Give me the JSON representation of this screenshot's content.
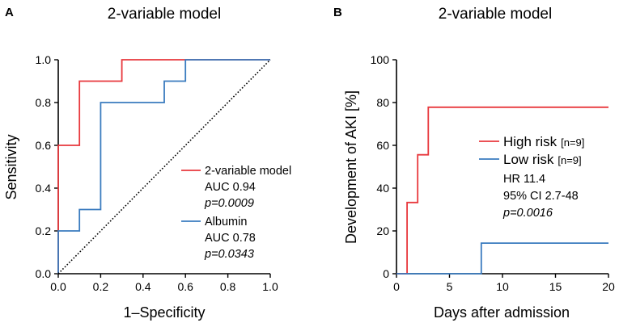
{
  "chart_data": [
    {
      "panel": "A",
      "type": "line",
      "title": "2-variable model",
      "xlabel": "1–Specificity",
      "ylabel": "Sensitivity",
      "xlim": [
        0,
        1
      ],
      "ylim": [
        0,
        1
      ],
      "xticks": [
        "0.0",
        "0.2",
        "0.4",
        "0.6",
        "0.8",
        "1.0"
      ],
      "yticks": [
        "0.0",
        "0.2",
        "0.4",
        "0.6",
        "0.8",
        "1.0"
      ],
      "series": [
        {
          "name": "2-variable model",
          "color": "#e8383d",
          "x": [
            0,
            0,
            0,
            0.1,
            0.1,
            0.2,
            0.3,
            0.3,
            1.0
          ],
          "y": [
            0,
            0.2,
            0.6,
            0.6,
            0.9,
            0.9,
            0.9,
            1.0,
            1.0
          ],
          "auc": "AUC 0.94",
          "p": "p=0.0009"
        },
        {
          "name": "Albumin",
          "color": "#3a7bbf",
          "x": [
            0,
            0,
            0.1,
            0.1,
            0.2,
            0.2,
            0.5,
            0.5,
            0.6,
            0.6,
            1.0
          ],
          "y": [
            0,
            0.2,
            0.2,
            0.3,
            0.3,
            0.8,
            0.8,
            0.9,
            0.9,
            1.0,
            1.0
          ],
          "auc": "AUC 0.78",
          "p": "p=0.0343"
        },
        {
          "name": "reference",
          "color": "#000000",
          "x": [
            0,
            1
          ],
          "y": [
            0,
            1
          ],
          "style": "dotted"
        }
      ],
      "legend_position": "bottom-right"
    },
    {
      "panel": "B",
      "type": "line",
      "title": "2-variable model",
      "xlabel": "Days after admission",
      "ylabel": "Development of AKI [%]",
      "xlim": [
        0,
        20
      ],
      "ylim": [
        0,
        100
      ],
      "xticks": [
        "0",
        "5",
        "10",
        "15",
        "20"
      ],
      "yticks": [
        "0",
        "20",
        "40",
        "60",
        "80",
        "100"
      ],
      "series": [
        {
          "name": "High risk",
          "n": "[n=9]",
          "color": "#e8383d",
          "x": [
            0,
            1,
            1,
            2,
            2,
            3,
            3,
            20
          ],
          "y": [
            0,
            0,
            33.3,
            33.3,
            55.6,
            55.6,
            77.8,
            77.8
          ]
        },
        {
          "name": "Low risk",
          "n": "[n=9]",
          "color": "#3a7bbf",
          "x": [
            0,
            8,
            8,
            20
          ],
          "y": [
            0,
            0,
            14.3,
            14.3
          ]
        }
      ],
      "annotations": [
        "HR 11.4",
        "95% CI 2.7-48",
        "p=0.0016"
      ],
      "legend_position": "right"
    }
  ]
}
